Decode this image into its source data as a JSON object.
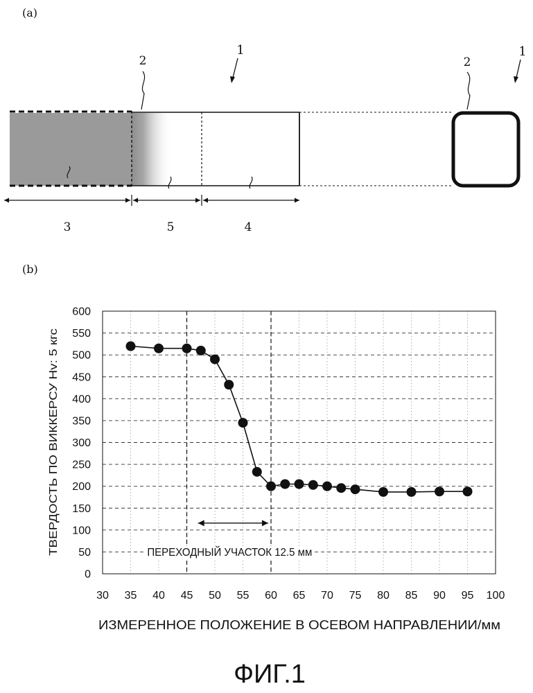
{
  "panel_a": {
    "label": "(a)",
    "callouts": {
      "tube_ref_left": "1",
      "boundary_ref": "2",
      "tube_ref_right": "1",
      "wall_ref_right": "2"
    },
    "zones": {
      "hardened": "3",
      "transition": "5",
      "unhardened": "4"
    }
  },
  "panel_b": {
    "label": "(b)"
  },
  "chart_data": {
    "type": "line",
    "ylabel": "ТВЕРДОСТЬ ПО ВИККЕРСУ Hv: 5 кгс",
    "xlabel": "ИЗМЕРЕННОЕ ПОЛОЖЕНИЕ В ОСЕВОМ НАПРАВЛЕНИИ/мм",
    "xlim": [
      30,
      100
    ],
    "ylim": [
      0,
      600
    ],
    "x_ticks": [
      "30",
      "35",
      "40",
      "45",
      "50",
      "55",
      "60",
      "65",
      "70",
      "75",
      "80",
      "85",
      "90",
      "95",
      "100"
    ],
    "y_ticks": [
      "0",
      "50",
      "100",
      "150",
      "200",
      "250",
      "300",
      "350",
      "400",
      "450",
      "500",
      "550",
      "600"
    ],
    "grid": "dashed",
    "series": [
      {
        "x": [
          35,
          40,
          45,
          47.5,
          50,
          52.5,
          55,
          57.5,
          60,
          62.5,
          65,
          67.5,
          70,
          72.5,
          75,
          80,
          85,
          90,
          95
        ],
        "y": [
          520,
          515,
          515,
          510,
          490,
          432,
          345,
          233,
          200,
          205,
          205,
          203,
          200,
          196,
          193,
          187,
          187,
          188,
          188
        ]
      }
    ],
    "vertical_markers": [
      45,
      60
    ],
    "transition_span": [
      47,
      59.5
    ],
    "annotation": "ПЕРЕХОДНЫЙ УЧАСТОК 12.5 мм"
  },
  "caption": "ФИГ.1"
}
